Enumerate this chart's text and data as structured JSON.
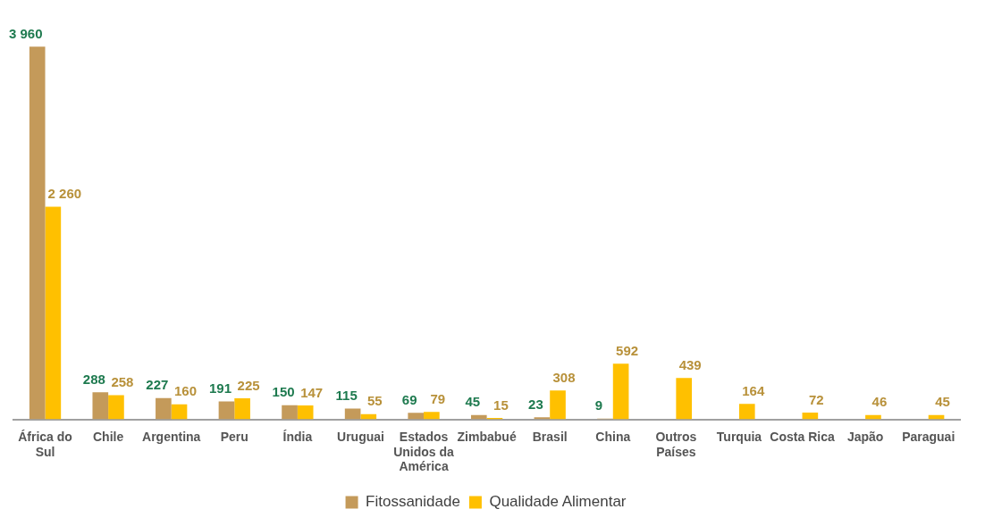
{
  "chart_data": {
    "type": "bar",
    "categories": [
      "África do Sul",
      "Chile",
      "Argentina",
      "Peru",
      "Índia",
      "Uruguai",
      "Estados Unidos da América",
      "Zimbabué",
      "Brasil",
      "China",
      "Outros Países",
      "Turquia",
      "Costa Rica",
      "Japão",
      "Paraguai"
    ],
    "series": [
      {
        "name": "Fitossanidade",
        "color": "#c49a5a",
        "values": [
          3960,
          288,
          227,
          191,
          150,
          115,
          69,
          45,
          23,
          9,
          null,
          null,
          null,
          null,
          null
        ],
        "value_labels": [
          "3 960",
          "288",
          "227",
          "191",
          "150",
          "115",
          "69",
          "45",
          "23",
          "9",
          null,
          null,
          null,
          null,
          null
        ]
      },
      {
        "name": "Qualidade Alimentar",
        "color": "#ffc000",
        "values": [
          2260,
          258,
          160,
          225,
          147,
          55,
          79,
          15,
          308,
          592,
          439,
          164,
          72,
          46,
          45
        ],
        "value_labels": [
          "2 260",
          "258",
          "160",
          "225",
          "147",
          "55",
          "79",
          "15",
          "308",
          "592",
          "439",
          "164",
          "72",
          "46",
          "45"
        ]
      }
    ],
    "legend": "bottom",
    "grid": false
  }
}
